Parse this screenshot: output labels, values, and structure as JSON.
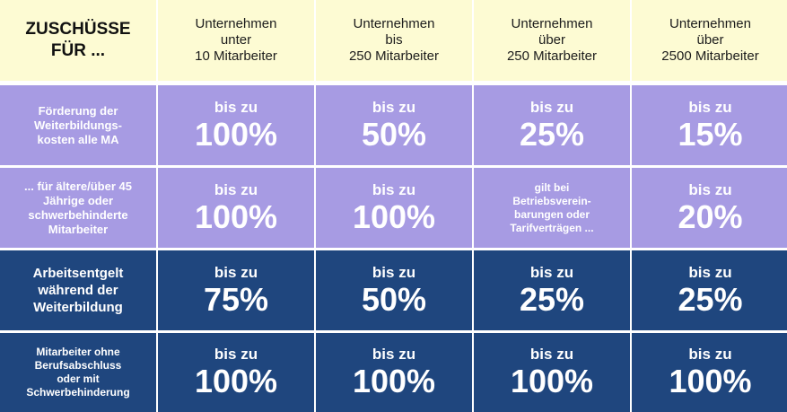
{
  "header": {
    "corner_line1": "ZUSCHÜSSE",
    "corner_line2": "FÜR ...",
    "columns": [
      {
        "line1": "Unternehmen",
        "line2": "unter",
        "line3": "10 Mitarbeiter"
      },
      {
        "line1": "Unternehmen",
        "line2": "bis",
        "line3": "250 Mitarbeiter"
      },
      {
        "line1": "Unternehmen",
        "line2": "über",
        "line3": "250 Mitarbeiter"
      },
      {
        "line1": "Unternehmen",
        "line2": "über",
        "line3": "2500 Mitarbeiter"
      }
    ]
  },
  "rows": [
    {
      "label_lines": [
        "Förderung der",
        "Weiterbildungs-",
        "kosten alle MA"
      ],
      "cells": [
        {
          "small": "bis zu",
          "big": "100%"
        },
        {
          "small": "bis zu",
          "big": "50%"
        },
        {
          "small": "bis zu",
          "big": "25%"
        },
        {
          "small": "bis zu",
          "big": "15%"
        }
      ]
    },
    {
      "label_lines": [
        "... für ältere/über 45",
        "Jährige oder",
        "schwerbehinderte",
        "Mitarbeiter"
      ],
      "cells": [
        {
          "small": "bis zu",
          "big": "100%"
        },
        {
          "small": "bis zu",
          "big": "100%"
        },
        {
          "note_lines": [
            "gilt bei",
            "Betriebsverein-",
            "barungen oder",
            "Tarifverträgen ..."
          ]
        },
        {
          "small": "bis zu",
          "big": "20%"
        }
      ]
    },
    {
      "label_lines": [
        "Arbeitsentgelt",
        "während der",
        "Weiterbildung"
      ],
      "cells": [
        {
          "small": "bis zu",
          "big": "75%"
        },
        {
          "small": "bis zu",
          "big": "50%"
        },
        {
          "small": "bis zu",
          "big": "25%"
        },
        {
          "small": "bis zu",
          "big": "25%"
        }
      ]
    },
    {
      "label_lines": [
        "Mitarbeiter ohne",
        "Berufsabschluss",
        "oder mit",
        "Schwerbehinderung"
      ],
      "cells": [
        {
          "small": "bis zu",
          "big": "100%"
        },
        {
          "small": "bis zu",
          "big": "100%"
        },
        {
          "small": "bis zu",
          "big": "100%"
        },
        {
          "small": "bis zu",
          "big": "100%"
        }
      ]
    }
  ],
  "colors": {
    "header_bg": "#fdfbd3",
    "light_row_bg": "#a79be3",
    "dark_row_bg": "#1f467e"
  }
}
